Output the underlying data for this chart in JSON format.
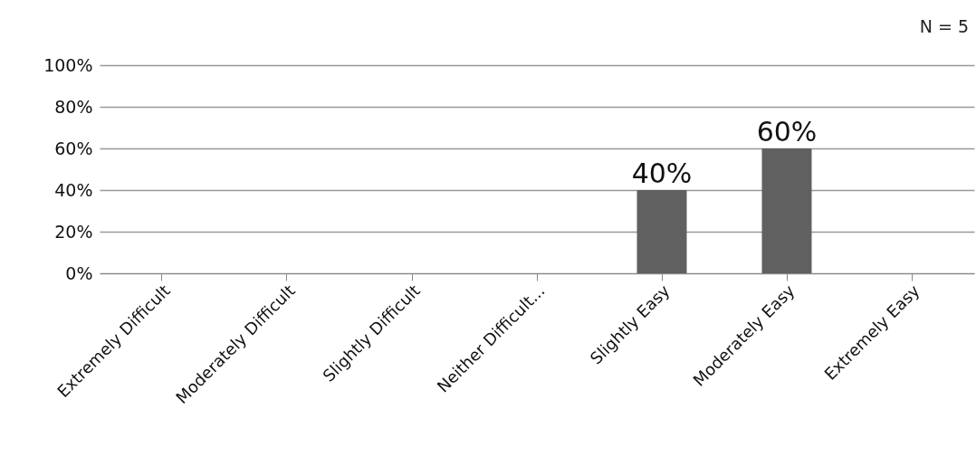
{
  "chart_data": {
    "type": "bar",
    "categories": [
      "Extremely Difficult",
      "Moderately Difficult",
      "Slightly Difficult",
      "Neither Difficult...",
      "Slightly Easy",
      "Moderately Easy",
      "Extremely Easy"
    ],
    "values": [
      0,
      0,
      0,
      0,
      40,
      60,
      0
    ],
    "value_labels": [
      null,
      null,
      null,
      null,
      "40%",
      "60%",
      null
    ],
    "color": "#606060",
    "ylim": [
      0,
      100
    ],
    "yticks": [
      {
        "value": 0,
        "label": "0%"
      },
      {
        "value": 20,
        "label": "20%"
      },
      {
        "value": 40,
        "label": "40%"
      },
      {
        "value": 60,
        "label": "60%"
      },
      {
        "value": 80,
        "label": "80%"
      },
      {
        "value": 100,
        "label": "100%"
      }
    ],
    "grid": "y",
    "annotations": [
      "N = 5"
    ]
  }
}
